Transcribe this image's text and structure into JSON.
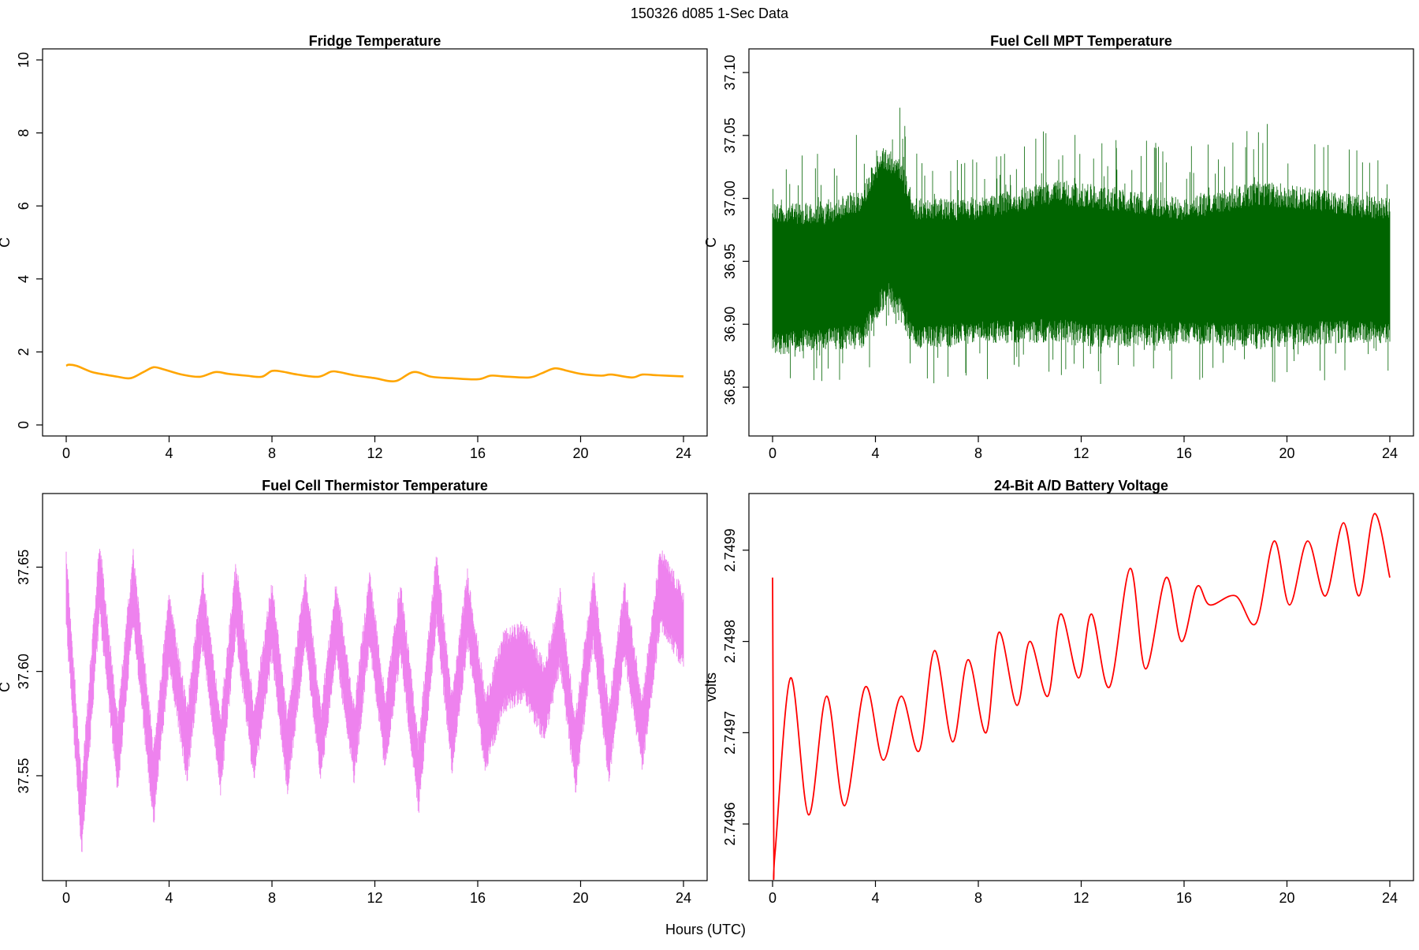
{
  "header": {
    "title": "150326   d085   1-Sec Data"
  },
  "footer": {
    "xlabel": "Hours (UTC)"
  },
  "colors": {
    "fridge": "#FFA500",
    "mpt": "#006400",
    "thermistor": "#EE82EE",
    "battery": "#FF0000"
  },
  "chart_data": [
    {
      "type": "line",
      "title": "Fridge Temperature",
      "ylabel": "C",
      "xlim": [
        0,
        24
      ],
      "ylim": [
        0,
        10
      ],
      "x_ticks": [
        "0",
        "4",
        "8",
        "12",
        "16",
        "20",
        "24"
      ],
      "y_ticks": [
        "0",
        "2",
        "4",
        "6",
        "8",
        "10"
      ],
      "series": [
        {
          "color": "#FFA500",
          "x": [
            0,
            0.1,
            0.4,
            1.0,
            1.5,
            2.0,
            2.5,
            3.0,
            3.4,
            3.8,
            4.5,
            5.2,
            5.8,
            6.3,
            7.0,
            7.6,
            8.0,
            8.4,
            9.0,
            9.8,
            10.3,
            10.6,
            11.2,
            12.0,
            12.8,
            13.5,
            14.2,
            15.0,
            16.0,
            16.5,
            17.0,
            18.0,
            18.5,
            19.0,
            19.5,
            20.0,
            20.8,
            21.2,
            22.0,
            22.4,
            23.0,
            24.0
          ],
          "y": [
            1.62,
            1.65,
            1.62,
            1.45,
            1.38,
            1.32,
            1.28,
            1.45,
            1.58,
            1.52,
            1.38,
            1.32,
            1.45,
            1.4,
            1.35,
            1.32,
            1.48,
            1.46,
            1.38,
            1.32,
            1.46,
            1.45,
            1.36,
            1.28,
            1.2,
            1.45,
            1.32,
            1.28,
            1.25,
            1.35,
            1.33,
            1.3,
            1.42,
            1.55,
            1.48,
            1.4,
            1.35,
            1.38,
            1.3,
            1.38,
            1.36,
            1.33
          ]
        }
      ]
    },
    {
      "type": "line",
      "title": "Fuel Cell MPT Temperature",
      "ylabel": "C",
      "xlim": [
        0,
        24
      ],
      "ylim": [
        36.82,
        37.11
      ],
      "x_ticks": [
        "0",
        "4",
        "8",
        "12",
        "16",
        "20",
        "24"
      ],
      "y_ticks": [
        "36.85",
        "36.90",
        "36.95",
        "37.00",
        "37.05",
        "37.10"
      ],
      "series": [
        {
          "color": "#006400",
          "x": [
            0,
            2,
            3.5,
            4.2,
            4.5,
            5.0,
            5.5,
            8,
            11,
            13,
            16,
            19,
            22,
            24
          ],
          "y_low": [
            36.875,
            36.88,
            36.88,
            36.91,
            36.915,
            36.9,
            36.88,
            36.885,
            36.885,
            36.88,
            36.885,
            36.88,
            36.885,
            36.885
          ],
          "y_high": [
            37.0,
            36.995,
            37.01,
            37.04,
            37.04,
            37.03,
            37.0,
            37.0,
            37.015,
            37.01,
            37.0,
            37.015,
            37.005,
            37.0
          ]
        }
      ]
    },
    {
      "type": "line",
      "title": "Fuel Cell Thermistor Temperature",
      "ylabel": "C",
      "xlim": [
        0,
        24
      ],
      "ylim": [
        37.505,
        37.68
      ],
      "x_ticks": [
        "0",
        "4",
        "8",
        "12",
        "16",
        "20",
        "24"
      ],
      "y_ticks": [
        "37.55",
        "37.60",
        "37.65"
      ],
      "series": [
        {
          "color": "#EE82EE",
          "x": [
            0,
            0.6,
            1.3,
            2.0,
            2.6,
            3.4,
            4.0,
            4.7,
            5.3,
            6.0,
            6.6,
            7.3,
            8.0,
            8.6,
            9.3,
            9.9,
            10.5,
            11.2,
            11.8,
            12.4,
            13.0,
            13.7,
            14.4,
            15.0,
            15.6,
            16.3,
            17.0,
            17.8,
            18.6,
            19.2,
            19.8,
            20.5,
            21.1,
            21.7,
            22.4,
            23.1,
            24.0
          ],
          "y": [
            37.64,
            37.53,
            37.645,
            37.56,
            37.64,
            37.545,
            37.62,
            37.565,
            37.63,
            37.56,
            37.635,
            37.565,
            37.625,
            37.56,
            37.63,
            37.565,
            37.625,
            37.565,
            37.63,
            37.57,
            37.625,
            37.55,
            37.64,
            37.57,
            37.63,
            37.57,
            37.6,
            37.605,
            37.585,
            37.62,
            37.56,
            37.63,
            37.565,
            37.625,
            37.57,
            37.64,
            37.62
          ]
        }
      ]
    },
    {
      "type": "line",
      "title": "24-Bit A/D Battery Voltage",
      "ylabel": "volts",
      "xlim": [
        0,
        24
      ],
      "ylim": [
        2.74955,
        2.74995
      ],
      "x_ticks": [
        "0",
        "4",
        "8",
        "12",
        "16",
        "20",
        "24"
      ],
      "y_ticks": [
        "2.7496",
        "2.7497",
        "2.7498",
        "2.7499"
      ],
      "series": [
        {
          "color": "#FF0000",
          "x": [
            0,
            0.05,
            0.1,
            0.7,
            1.4,
            2.1,
            2.8,
            3.6,
            4.3,
            5.0,
            5.7,
            6.3,
            7.0,
            7.6,
            8.3,
            8.8,
            9.5,
            10.0,
            10.7,
            11.2,
            11.9,
            12.4,
            13.1,
            13.9,
            14.5,
            15.3,
            15.9,
            16.5,
            17.0,
            18.0,
            18.8,
            19.5,
            20.1,
            20.8,
            21.5,
            22.2,
            22.8,
            23.4,
            24.0
          ],
          "y": [
            2.74987,
            2.74957,
            2.74957,
            2.74976,
            2.74961,
            2.74974,
            2.74962,
            2.74975,
            2.74967,
            2.74974,
            2.74968,
            2.74979,
            2.74969,
            2.74978,
            2.7497,
            2.74981,
            2.74973,
            2.7498,
            2.74974,
            2.74983,
            2.74976,
            2.74983,
            2.74975,
            2.74988,
            2.74977,
            2.74987,
            2.7498,
            2.74986,
            2.74984,
            2.74985,
            2.74982,
            2.74991,
            2.74984,
            2.74991,
            2.74985,
            2.74993,
            2.74985,
            2.74994,
            2.74987
          ]
        }
      ]
    }
  ]
}
